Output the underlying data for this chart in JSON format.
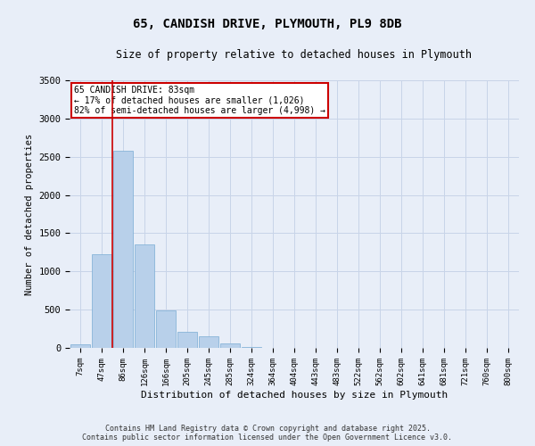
{
  "title": "65, CANDISH DRIVE, PLYMOUTH, PL9 8DB",
  "subtitle": "Size of property relative to detached houses in Plymouth",
  "xlabel": "Distribution of detached houses by size in Plymouth",
  "ylabel": "Number of detached properties",
  "categories": [
    "7sqm",
    "47sqm",
    "86sqm",
    "126sqm",
    "166sqm",
    "205sqm",
    "245sqm",
    "285sqm",
    "324sqm",
    "364sqm",
    "404sqm",
    "443sqm",
    "483sqm",
    "522sqm",
    "562sqm",
    "602sqm",
    "641sqm",
    "681sqm",
    "721sqm",
    "760sqm",
    "800sqm"
  ],
  "values": [
    50,
    1220,
    2580,
    1350,
    490,
    210,
    155,
    55,
    10,
    2,
    1,
    0,
    0,
    0,
    0,
    0,
    0,
    0,
    0,
    0,
    0
  ],
  "bar_color": "#b8d0ea",
  "bar_edge_color": "#7aadd4",
  "vline_color": "#cc0000",
  "annotation_title": "65 CANDISH DRIVE: 83sqm",
  "annotation_line1": "← 17% of detached houses are smaller (1,026)",
  "annotation_line2": "82% of semi-detached houses are larger (4,998) →",
  "annotation_box_color": "#ffffff",
  "annotation_box_edge_color": "#cc0000",
  "grid_color": "#c8d4e8",
  "bg_color": "#e8eef8",
  "plot_bg_color": "#e8eef8",
  "ylim": [
    0,
    3500
  ],
  "yticks": [
    0,
    500,
    1000,
    1500,
    2000,
    2500,
    3000,
    3500
  ],
  "footer1": "Contains HM Land Registry data © Crown copyright and database right 2025.",
  "footer2": "Contains public sector information licensed under the Open Government Licence v3.0."
}
